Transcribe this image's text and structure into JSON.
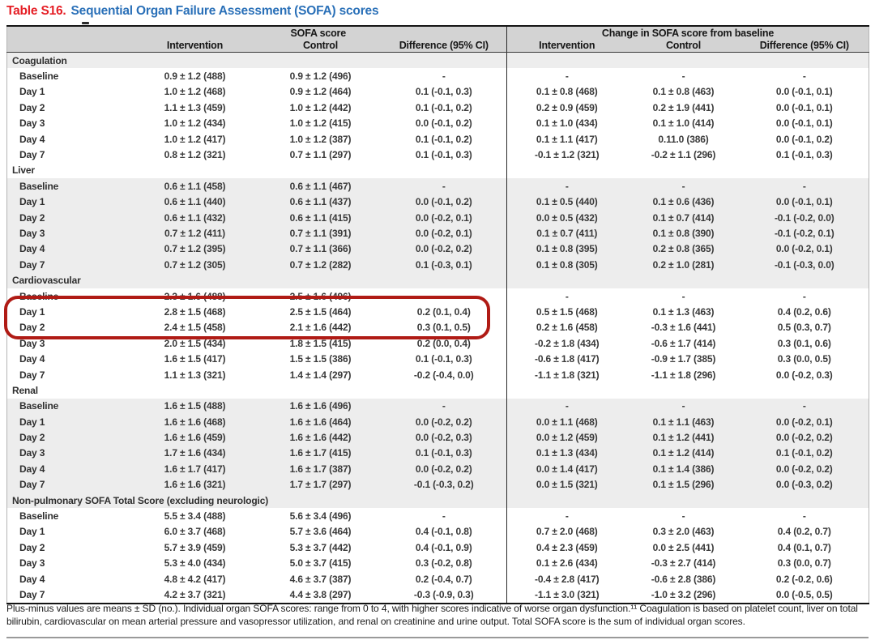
{
  "title": {
    "label": "Table S16.",
    "text": "Sequential Organ Failure Assessment (SOFA) scores"
  },
  "header": {
    "group1": "SOFA score",
    "group2": "Change in SOFA score from baseline",
    "cols": [
      "Intervention",
      "Control",
      "Difference (95% CI)",
      "Intervention",
      "Control",
      "Difference (95% CI)"
    ]
  },
  "sections": [
    {
      "name": "Coagulation",
      "rows": [
        {
          "label": "Baseline",
          "cells": [
            "0.9 ± 1.2 (488)",
            "0.9 ± 1.2 (496)",
            "-",
            "-",
            "-",
            "-"
          ]
        },
        {
          "label": "Day 1",
          "cells": [
            "1.0 ± 1.2 (468)",
            "0.9 ± 1.2 (464)",
            "0.1 (-0.1, 0.3)",
            "0.1 ± 0.8 (468)",
            "0.1 ± 0.8 (463)",
            "0.0 (-0.1, 0.1)"
          ]
        },
        {
          "label": "Day 2",
          "cells": [
            "1.1 ± 1.3 (459)",
            "1.0 ± 1.2 (442)",
            "0.1 (-0.1, 0.2)",
            "0.2 ± 0.9 (459)",
            "0.2 ± 1.9 (441)",
            "0.0 (-0.1, 0.1)"
          ]
        },
        {
          "label": "Day 3",
          "cells": [
            "1.0 ± 1.2 (434)",
            "1.0 ± 1.2 (415)",
            "0.0 (-0.1, 0.2)",
            "0.1 ± 1.0 (434)",
            "0.1 ± 1.0 (414)",
            "0.0 (-0.1, 0.1)"
          ]
        },
        {
          "label": "Day 4",
          "cells": [
            "1.0 ± 1.2 (417)",
            "1.0 ± 1.2 (387)",
            "0.1 (-0.1, 0.2)",
            "0.1 ± 1.1 (417)",
            "0.11.0 (386)",
            "0.0 (-0.1, 0.2)"
          ]
        },
        {
          "label": "Day 7",
          "cells": [
            "0.8 ± 1.2 (321)",
            "0.7 ± 1.1 (297)",
            "0.1 (-0.1, 0.3)",
            "-0.1 ± 1.2 (321)",
            "-0.2 ± 1.1 (296)",
            "0.1 (-0.1, 0.3)"
          ]
        }
      ]
    },
    {
      "name": "Liver",
      "rows": [
        {
          "label": "Baseline",
          "cells": [
            "0.6 ± 1.1 (458)",
            "0.6 ± 1.1 (467)",
            "-",
            "-",
            "-",
            "-"
          ]
        },
        {
          "label": "Day 1",
          "cells": [
            "0.6 ± 1.1 (440)",
            "0.6 ± 1.1 (437)",
            "0.0 (-0.1, 0.2)",
            "0.1 ± 0.5 (440)",
            "0.1 ± 0.6 (436)",
            "0.0 (-0.1, 0.1)"
          ]
        },
        {
          "label": "Day 2",
          "cells": [
            "0.6 ± 1.1 (432)",
            "0.6 ± 1.1 (415)",
            "0.0 (-0.2, 0.1)",
            "0.0 ± 0.5 (432)",
            "0.1 ± 0.7 (414)",
            "-0.1 (-0.2, 0.0)"
          ]
        },
        {
          "label": "Day 3",
          "cells": [
            "0.7 ± 1.2 (411)",
            "0.7 ± 1.1 (391)",
            "0.0 (-0.2, 0.1)",
            "0.1 ± 0.7 (411)",
            "0.1 ± 0.8 (390)",
            "-0.1 (-0.2, 0.1)"
          ]
        },
        {
          "label": "Day 4",
          "cells": [
            "0.7 ± 1.2 (395)",
            "0.7 ± 1.1 (366)",
            "0.0 (-0.2, 0.2)",
            "0.1 ± 0.8 (395)",
            "0.2 ± 0.8 (365)",
            "0.0 (-0.2, 0.1)"
          ]
        },
        {
          "label": "Day 7",
          "cells": [
            "0.7 ± 1.2 (305)",
            "0.7 ± 1.2 (282)",
            "0.1 (-0.3, 0.1)",
            "0.1 ± 0.8 (305)",
            "0.2 ± 1.0 (281)",
            "-0.1 (-0.3, 0.0)"
          ]
        }
      ]
    },
    {
      "name": "Cardiovascular",
      "rows": [
        {
          "label": "Baseline",
          "cells": [
            "2.3 ± 1.6 (488)",
            "2.5 ± 1.6 (496)",
            "-",
            "-",
            "-",
            "-"
          ]
        },
        {
          "label": "Day 1",
          "cells": [
            "2.8 ± 1.5 (468)",
            "2.5 ± 1.5 (464)",
            "0.2 (0.1, 0.4)",
            "0.5 ± 1.5 (468)",
            "0.1 ± 1.3 (463)",
            "0.4 (0.2, 0.6)"
          ]
        },
        {
          "label": "Day 2",
          "cells": [
            "2.4 ± 1.5 (458)",
            "2.1 ± 1.6 (442)",
            "0.3 (0.1, 0.5)",
            "0.2 ± 1.6 (458)",
            "-0.3 ± 1.6 (441)",
            "0.5 (0.3, 0.7)"
          ]
        },
        {
          "label": "Day 3",
          "cells": [
            "2.0 ± 1.5 (434)",
            "1.8 ± 1.5 (415)",
            "0.2 (0.0, 0.4)",
            "-0.2 ± 1.8 (434)",
            "-0.6 ± 1.7 (414)",
            "0.3 (0.1, 0.6)"
          ]
        },
        {
          "label": "Day 4",
          "cells": [
            "1.6 ± 1.5 (417)",
            "1.5 ± 1.5 (386)",
            "0.1 (-0.1, 0.3)",
            "-0.6 ± 1.8 (417)",
            "-0.9 ± 1.7 (385)",
            "0.3 (0.0, 0.5)"
          ]
        },
        {
          "label": "Day 7",
          "cells": [
            "1.1 ± 1.3 (321)",
            "1.4 ± 1.4 (297)",
            "-0.2 (-0.4, 0.0)",
            "-1.1 ± 1.8 (321)",
            "-1.1 ± 1.8 (296)",
            "0.0 (-0.2, 0.3)"
          ]
        }
      ]
    },
    {
      "name": "Renal",
      "rows": [
        {
          "label": "Baseline",
          "cells": [
            "1.6 ± 1.5 (488)",
            "1.6 ± 1.6 (496)",
            "-",
            "-",
            "-",
            "-"
          ]
        },
        {
          "label": "Day 1",
          "cells": [
            "1.6 ± 1.6 (468)",
            "1.6 ± 1.6 (464)",
            "0.0 (-0.2, 0.2)",
            "0.0 ± 1.1 (468)",
            "0.1 ± 1.1 (463)",
            "0.0 (-0.2, 0.1)"
          ]
        },
        {
          "label": "Day 2",
          "cells": [
            "1.6 ± 1.6 (459)",
            "1.6 ± 1.6 (442)",
            "0.0 (-0.2, 0.3)",
            "0.0 ± 1.2 (459)",
            "0.1 ± 1.2 (441)",
            "0.0 (-0.2, 0.2)"
          ]
        },
        {
          "label": "Day 3",
          "cells": [
            "1.7 ± 1.6 (434)",
            "1.6 ± 1.7 (415)",
            "0.1 (-0.1, 0.3)",
            "0.1 ± 1.3 (434)",
            "0.1 ± 1.2 (414)",
            "0.1 (-0.1, 0.2)"
          ]
        },
        {
          "label": "Day 4",
          "cells": [
            "1.6 ± 1.7 (417)",
            "1.6 ± 1.7 (387)",
            "0.0 (-0.2, 0.2)",
            "0.0 ± 1.4 (417)",
            "0.1 ± 1.4 (386)",
            "0.0 (-0.2, 0.2)"
          ]
        },
        {
          "label": "Day 7",
          "cells": [
            "1.6 ± 1.6 (321)",
            "1.7 ± 1.7 (297)",
            "-0.1 (-0.3, 0.2)",
            "0.0 ± 1.5 (321)",
            "0.1 ± 1.5 (296)",
            "0.0 (-0.3, 0.2)"
          ]
        }
      ]
    },
    {
      "name": "Non-pulmonary SOFA Total Score (excluding neurologic)",
      "rows": [
        {
          "label": "Baseline",
          "cells": [
            "5.5 ± 3.4 (488)",
            "5.6 ± 3.4 (496)",
            "-",
            "-",
            "-",
            "-"
          ]
        },
        {
          "label": "Day 1",
          "cells": [
            "6.0 ± 3.7 (468)",
            "5.7 ± 3.6 (464)",
            "0.4 (-0.1, 0.8)",
            "0.7 ± 2.0 (468)",
            "0.3 ± 2.0 (463)",
            "0.4 (0.2, 0.7)"
          ]
        },
        {
          "label": "Day 2",
          "cells": [
            "5.7 ± 3.9 (459)",
            "5.3 ± 3.7 (442)",
            "0.4 (-0.1, 0.9)",
            "0.4 ± 2.3 (459)",
            "0.0 ± 2.5 (441)",
            "0.4 (0.1, 0.7)"
          ]
        },
        {
          "label": "Day 3",
          "cells": [
            "5.3 ± 4.0 (434)",
            "5.0 ± 3.7 (415)",
            "0.3 (-0.2, 0.8)",
            "0.1 ± 2.6 (434)",
            "-0.3 ± 2.7 (414)",
            "0.3 (0.0, 0.7)"
          ]
        },
        {
          "label": "Day 4",
          "cells": [
            "4.8 ± 4.2 (417)",
            "4.6 ± 3.7 (387)",
            "0.2 (-0.4, 0.7)",
            "-0.4 ± 2.8 (417)",
            "-0.6 ± 2.8 (386)",
            "0.2 (-0.2, 0.6)"
          ]
        },
        {
          "label": "Day 7",
          "cells": [
            "4.2 ± 3.7 (321)",
            "4.4 ± 3.8 (297)",
            "-0.3 (-0.9, 0.3)",
            "-1.1 ± 3.0 (321)",
            "-1.0 ± 3.2 (296)",
            "0.0 (-0.5, 0.5)"
          ]
        }
      ]
    }
  ],
  "highlight": {
    "section": "Cardiovascular",
    "rows": [
      "Day 1",
      "Day 2"
    ],
    "border_color": "#b01b15"
  },
  "footnote": "Plus-minus values are means ± SD (no.). Individual organ SOFA scores: range from 0 to 4, with higher scores indicative of worse organ dysfunction.¹¹ Coagulation is based on platelet count, liver on total bilirubin, cardiovascular on mean arterial pressure and vasopressor utilization, and renal on creatinine and urine output. Total SOFA score is the sum of individual organ scores.",
  "colors": {
    "title_label_red": "#e51e25",
    "title_text_blue": "#2a70b8",
    "header_band_grey": "#d3d3d3",
    "stripe_grey": "#ededed",
    "highlight_red": "#b01b15"
  }
}
